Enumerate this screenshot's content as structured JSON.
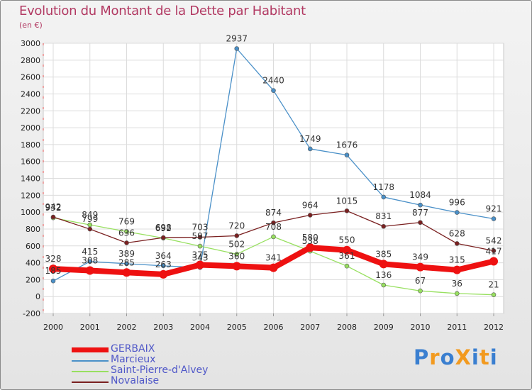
{
  "header": {
    "title": "Evolution du Montant de la Dette par Habitant",
    "subtitle": "(en €)"
  },
  "brand": {
    "text": "ProXiti",
    "letters": [
      {
        "ch": "P",
        "color": "#3a7fd0"
      },
      {
        "ch": "r",
        "color": "#f29a1f"
      },
      {
        "ch": "o",
        "color": "#3a7fd0"
      },
      {
        "ch": "X",
        "color": "#f29a1f"
      },
      {
        "ch": "i",
        "color": "#3a7fd0"
      },
      {
        "ch": "t",
        "color": "#f29a1f"
      },
      {
        "ch": "i",
        "color": "#3a7fd0"
      }
    ]
  },
  "chart_data": {
    "type": "line",
    "title": "Evolution du Montant de la Dette par Habitant",
    "subtitle": "(en €)",
    "x": [
      "2000",
      "2001",
      "2002",
      "2003",
      "2004",
      "2005",
      "2006",
      "2007",
      "2008",
      "2009",
      "2010",
      "2011",
      "2012"
    ],
    "ylim": [
      -200,
      3000
    ],
    "yticks": [
      -200,
      0,
      200,
      400,
      600,
      800,
      1000,
      1200,
      1400,
      1600,
      1800,
      2000,
      2200,
      2400,
      2600,
      2800,
      3000
    ],
    "grid": true,
    "legend_position": "bottom-left",
    "series": [
      {
        "name": "GERBAIX",
        "color": "#ee1111",
        "values": [
          328,
          308,
          285,
          263,
          375,
          360,
          341,
          580,
          550,
          385,
          349,
          315,
          417
        ],
        "labels": [
          "328",
          "308",
          "285",
          "263",
          "375",
          "360",
          "341",
          "580",
          "550",
          "385",
          "349",
          "315",
          "417"
        ]
      },
      {
        "name": "Marcieux",
        "color": "#4a90c8",
        "values": [
          185,
          415,
          389,
          364,
          343,
          2937,
          2440,
          1749,
          1676,
          1178,
          1084,
          996,
          921
        ],
        "labels": [
          "185",
          "415",
          "389",
          "364",
          "343",
          "2937",
          "2440",
          "1749",
          "1676",
          "1178",
          "1084",
          "996",
          "921"
        ]
      },
      {
        "name": "Saint-Pierre-d'Alvey",
        "color": "#98e060",
        "values": [
          932,
          849,
          769,
          692,
          597,
          502,
          708,
          538,
          361,
          136,
          67,
          36,
          21
        ],
        "labels": [
          "932",
          "849",
          "769",
          "692",
          "597",
          "502",
          "708",
          "538",
          "361",
          "136",
          "67",
          "36",
          "21"
        ]
      },
      {
        "name": "Novalaise",
        "color": "#7a2020",
        "values": [
          942,
          799,
          636,
          698,
          703,
          720,
          874,
          964,
          1015,
          831,
          877,
          628,
          542
        ],
        "labels": [
          "942",
          "799",
          "636",
          "698",
          "703",
          "720",
          "874",
          "964",
          "1015",
          "831",
          "877",
          "628",
          "542"
        ]
      }
    ]
  }
}
